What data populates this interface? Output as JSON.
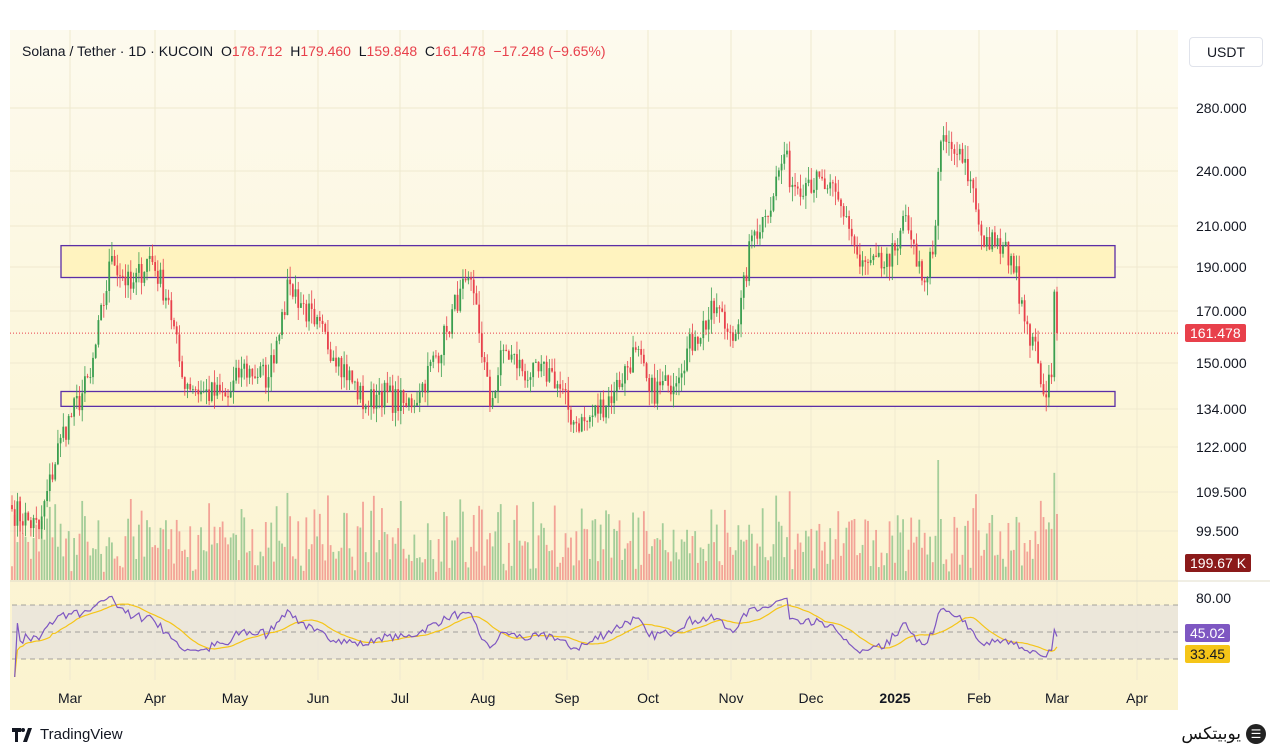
{
  "header": {
    "symbol": "Solana / Tether · 1D · KUCOIN",
    "open_label": "O",
    "open": "178.712",
    "high_label": "H",
    "high": "179.460",
    "low_label": "L",
    "low": "159.848",
    "close_label": "C",
    "close": "161.478",
    "change": "−17.248 (−9.65%)"
  },
  "currency_button": "USDT",
  "price_axis": [
    "280.000",
    "240.000",
    "210.000",
    "190.000",
    "170.000",
    "150.000",
    "134.000",
    "122.000",
    "109.500",
    "99.500"
  ],
  "last_price_tag": "161.478",
  "volume_tag": "199.67 K",
  "rsi_axis": "80.00",
  "rsi_tag": "45.02",
  "rsi_ma_tag": "33.45",
  "time_axis": [
    "Mar",
    "Apr",
    "May",
    "Jun",
    "Jul",
    "Aug",
    "Sep",
    "Oct",
    "Nov",
    "Dec",
    "2025",
    "Feb",
    "Mar",
    "Apr"
  ],
  "footer": {
    "logo": "TradingView",
    "brand": "یوبیتکس"
  },
  "colors": {
    "up": "#3a9e4f",
    "down": "#e8404b",
    "box_border": "#5b2ea6",
    "box_fill": "#fff3bf",
    "rsi": "#7e57c2",
    "rsi_ma": "#f5c518"
  },
  "chart_data": {
    "type": "candlestick",
    "title": "Solana / Tether · 1D · KUCOIN",
    "scale": "log",
    "ylim": [
      95,
      300
    ],
    "price_path": [
      [
        "2024-02-10",
        105
      ],
      [
        "2024-02-20",
        100
      ],
      [
        "2024-02-28",
        125
      ],
      [
        "2024-03-10",
        145
      ],
      [
        "2024-03-18",
        195
      ],
      [
        "2024-03-25",
        180
      ],
      [
        "2024-04-01",
        195
      ],
      [
        "2024-04-08",
        175
      ],
      [
        "2024-04-13",
        145
      ],
      [
        "2024-04-20",
        140
      ],
      [
        "2024-04-30",
        138
      ],
      [
        "2024-05-05",
        148
      ],
      [
        "2024-05-15",
        145
      ],
      [
        "2024-05-20",
        170
      ],
      [
        "2024-05-23",
        182
      ],
      [
        "2024-06-01",
        165
      ],
      [
        "2024-06-10",
        152
      ],
      [
        "2024-06-20",
        135
      ],
      [
        "2024-06-25",
        140
      ],
      [
        "2024-07-05",
        135
      ],
      [
        "2024-07-10",
        140
      ],
      [
        "2024-07-20",
        162
      ],
      [
        "2024-07-25",
        180
      ],
      [
        "2024-07-30",
        178
      ],
      [
        "2024-08-05",
        135
      ],
      [
        "2024-08-10",
        155
      ],
      [
        "2024-08-20",
        145
      ],
      [
        "2024-08-28",
        147
      ],
      [
        "2024-09-05",
        130
      ],
      [
        "2024-09-10",
        130
      ],
      [
        "2024-09-20",
        140
      ],
      [
        "2024-09-28",
        155
      ],
      [
        "2024-10-03",
        140
      ],
      [
        "2024-10-10",
        142
      ],
      [
        "2024-10-20",
        160
      ],
      [
        "2024-10-28",
        172
      ],
      [
        "2024-11-01",
        162
      ],
      [
        "2024-11-05",
        165
      ],
      [
        "2024-11-10",
        205
      ],
      [
        "2024-11-15",
        215
      ],
      [
        "2024-11-22",
        250
      ],
      [
        "2024-11-25",
        232
      ],
      [
        "2024-12-01",
        235
      ],
      [
        "2024-12-08",
        230
      ],
      [
        "2024-12-15",
        215
      ],
      [
        "2024-12-20",
        190
      ],
      [
        "2024-12-31",
        190
      ],
      [
        "2025-01-05",
        215
      ],
      [
        "2025-01-10",
        190
      ],
      [
        "2025-01-14",
        185
      ],
      [
        "2025-01-17",
        210
      ],
      [
        "2025-01-19",
        258
      ],
      [
        "2025-01-25",
        250
      ],
      [
        "2025-01-30",
        235
      ],
      [
        "2025-02-03",
        205
      ],
      [
        "2025-02-08",
        200
      ],
      [
        "2025-02-14",
        195
      ],
      [
        "2025-02-18",
        175
      ],
      [
        "2025-02-24",
        150
      ],
      [
        "2025-02-27",
        138
      ],
      [
        "2025-03-01",
        145
      ],
      [
        "2025-03-02",
        178.712
      ],
      [
        "2025-03-03",
        161.478
      ]
    ],
    "zones": [
      {
        "top": 200,
        "bottom": 185
      },
      {
        "top": 140,
        "bottom": 135
      }
    ],
    "last_price": 161.478,
    "rsi_levels": [
      80,
      50,
      20
    ],
    "rsi_last": 45.02,
    "rsi_ma_last": 33.45
  }
}
